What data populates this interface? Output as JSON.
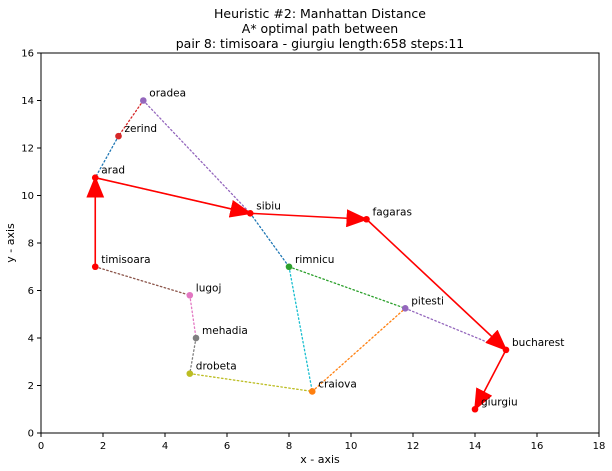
{
  "chart_data": {
    "type": "scatter",
    "title_lines": [
      "Heuristic #2: Manhattan Distance",
      "A* optimal path between",
      "pair 8: timisoara - giurgiu length:658 steps:11"
    ],
    "xlabel": "x - axis",
    "ylabel": "y - axis",
    "xlim": [
      0,
      18
    ],
    "ylim": [
      0,
      16
    ],
    "xticks": [
      "0",
      "2",
      "4",
      "6",
      "8",
      "10",
      "12",
      "14",
      "16",
      "18"
    ],
    "yticks": [
      "0",
      "2",
      "4",
      "6",
      "8",
      "10",
      "12",
      "14",
      "16"
    ],
    "grid": false,
    "nodes": [
      {
        "name": "oradea",
        "x": 3.3,
        "y": 14.0,
        "color": "#9467bd"
      },
      {
        "name": "zerind",
        "x": 2.5,
        "y": 12.5,
        "color": "#d62728"
      },
      {
        "name": "arad",
        "x": 1.75,
        "y": 10.75,
        "color": "#ff0000"
      },
      {
        "name": "sibiu",
        "x": 6.75,
        "y": 9.25,
        "color": "#ff0000"
      },
      {
        "name": "fagaras",
        "x": 10.5,
        "y": 9.0,
        "color": "#ff0000"
      },
      {
        "name": "timisoara",
        "x": 1.75,
        "y": 7.0,
        "color": "#ff0000"
      },
      {
        "name": "rimnicu",
        "x": 8.0,
        "y": 7.0,
        "color": "#2ca02c"
      },
      {
        "name": "lugoj",
        "x": 4.8,
        "y": 5.8,
        "color": "#e377c2"
      },
      {
        "name": "pitesti",
        "x": 11.75,
        "y": 5.25,
        "color": "#9467bd"
      },
      {
        "name": "mehadia",
        "x": 5.0,
        "y": 4.0,
        "color": "#7f7f7f"
      },
      {
        "name": "bucharest",
        "x": 15.0,
        "y": 3.5,
        "color": "#ff0000"
      },
      {
        "name": "drobeta",
        "x": 4.8,
        "y": 2.5,
        "color": "#bcbd22"
      },
      {
        "name": "craiova",
        "x": 8.75,
        "y": 1.75,
        "color": "#ff7f0e"
      },
      {
        "name": "giurgiu",
        "x": 14.0,
        "y": 1.0,
        "color": "#ff0000"
      }
    ],
    "edges": [
      {
        "from": "oradea",
        "to": "zerind",
        "color": "#d62728"
      },
      {
        "from": "zerind",
        "to": "arad",
        "color": "#1f77b4"
      },
      {
        "from": "oradea",
        "to": "sibiu",
        "color": "#9467bd"
      },
      {
        "from": "arad",
        "to": "sibiu",
        "color": "#ff7f0e"
      },
      {
        "from": "timisoara",
        "to": "lugoj",
        "color": "#8c564b"
      },
      {
        "from": "lugoj",
        "to": "mehadia",
        "color": "#e377c2"
      },
      {
        "from": "mehadia",
        "to": "drobeta",
        "color": "#7f7f7f"
      },
      {
        "from": "drobeta",
        "to": "craiova",
        "color": "#bcbd22"
      },
      {
        "from": "sibiu",
        "to": "rimnicu",
        "color": "#1f77b4"
      },
      {
        "from": "rimnicu",
        "to": "craiova",
        "color": "#17becf"
      },
      {
        "from": "rimnicu",
        "to": "pitesti",
        "color": "#2ca02c"
      },
      {
        "from": "craiova",
        "to": "pitesti",
        "color": "#ff7f0e"
      },
      {
        "from": "pitesti",
        "to": "bucharest",
        "color": "#9467bd"
      }
    ],
    "path": [
      "timisoara",
      "arad",
      "sibiu",
      "fagaras",
      "bucharest",
      "giurgiu"
    ],
    "path_color": "#ff0000"
  }
}
